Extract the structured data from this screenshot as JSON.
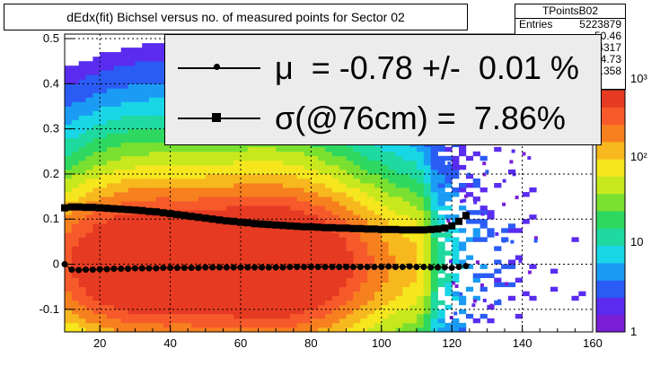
{
  "title": "dEdx(fit) Bichsel versus no. of measured points for Sector 02",
  "stats": {
    "name": "TPointsB02",
    "rows": [
      {
        "label": "Entries",
        "value": "5223879"
      },
      {
        "label": "",
        "value": "50.46"
      },
      {
        "label": "",
        "value": "0.04317"
      },
      {
        "label": "",
        "value": "24.73"
      },
      {
        "label": "",
        "value": "0.1358"
      }
    ]
  },
  "legend": {
    "mu_text": "μ  = -0.78 +/-  0.01 %",
    "sigma_text": "σ(@76cm) =  7.86%"
  },
  "colors": {
    "palette": [
      "#7a1fd6",
      "#5a2cf0",
      "#2a5cf5",
      "#1a9cf5",
      "#19d6e6",
      "#1ed9a0",
      "#2ed860",
      "#7ae030",
      "#c8e81e",
      "#f5e61e",
      "#f7b81e",
      "#f7801e",
      "#f75a2a",
      "#e63a22"
    ],
    "points": "#000000"
  },
  "chart_data": {
    "type": "heatmap",
    "xlim": [
      10,
      160
    ],
    "ylim": [
      -0.15,
      0.51
    ],
    "x_ticks": [
      20,
      40,
      60,
      80,
      100,
      120,
      140,
      160
    ],
    "y_ticks": [
      -0.1,
      0,
      0.1,
      0.2,
      0.3,
      0.4,
      0.5
    ],
    "z_scale": "log",
    "z_ticks": [
      "1",
      "10",
      "10²",
      "10³"
    ],
    "grid": true,
    "series": [
      {
        "name": "μ",
        "marker": "circle",
        "x": [
          10,
          12,
          14,
          16,
          18,
          20,
          22,
          24,
          26,
          28,
          30,
          32,
          34,
          36,
          38,
          40,
          42,
          44,
          46,
          48,
          50,
          52,
          54,
          56,
          58,
          60,
          62,
          64,
          66,
          68,
          70,
          72,
          74,
          76,
          78,
          80,
          82,
          84,
          86,
          88,
          90,
          92,
          94,
          96,
          98,
          100,
          102,
          104,
          106,
          108,
          110,
          112,
          114,
          116,
          118,
          120,
          122,
          124
        ],
        "y": [
          0.0,
          -0.012,
          -0.013,
          -0.012,
          -0.012,
          -0.011,
          -0.011,
          -0.01,
          -0.01,
          -0.01,
          -0.009,
          -0.009,
          -0.009,
          -0.009,
          -0.008,
          -0.008,
          -0.008,
          -0.008,
          -0.008,
          -0.008,
          -0.007,
          -0.007,
          -0.007,
          -0.007,
          -0.007,
          -0.007,
          -0.007,
          -0.007,
          -0.007,
          -0.007,
          -0.007,
          -0.007,
          -0.006,
          -0.006,
          -0.006,
          -0.006,
          -0.006,
          -0.006,
          -0.006,
          -0.006,
          -0.006,
          -0.006,
          -0.006,
          -0.006,
          -0.006,
          -0.006,
          -0.005,
          -0.006,
          -0.006,
          -0.005,
          -0.006,
          -0.006,
          -0.007,
          -0.007,
          -0.007,
          -0.008,
          -0.006,
          -0.004
        ]
      },
      {
        "name": "σ(@76cm)",
        "marker": "square",
        "x": [
          10,
          12,
          14,
          16,
          18,
          20,
          22,
          24,
          26,
          28,
          30,
          32,
          34,
          36,
          38,
          40,
          42,
          44,
          46,
          48,
          50,
          52,
          54,
          56,
          58,
          60,
          62,
          64,
          66,
          68,
          70,
          72,
          74,
          76,
          78,
          80,
          82,
          84,
          86,
          88,
          90,
          92,
          94,
          96,
          98,
          100,
          102,
          104,
          106,
          108,
          110,
          112,
          114,
          116,
          118,
          120,
          122,
          124
        ],
        "y": [
          0.125,
          0.127,
          0.127,
          0.126,
          0.126,
          0.125,
          0.124,
          0.123,
          0.122,
          0.121,
          0.12,
          0.119,
          0.117,
          0.116,
          0.114,
          0.112,
          0.11,
          0.108,
          0.106,
          0.104,
          0.102,
          0.1,
          0.098,
          0.096,
          0.095,
          0.093,
          0.092,
          0.09,
          0.089,
          0.088,
          0.087,
          0.086,
          0.085,
          0.084,
          0.083,
          0.083,
          0.082,
          0.081,
          0.081,
          0.08,
          0.08,
          0.079,
          0.079,
          0.078,
          0.078,
          0.077,
          0.077,
          0.077,
          0.076,
          0.076,
          0.076,
          0.076,
          0.077,
          0.078,
          0.08,
          0.085,
          0.095,
          0.108
        ]
      }
    ]
  }
}
